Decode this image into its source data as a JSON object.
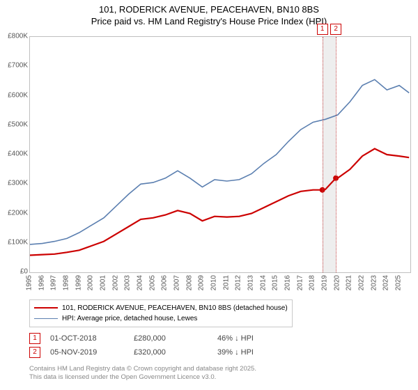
{
  "title_line1": "101, RODERICK AVENUE, PEACEHAVEN, BN10 8BS",
  "title_line2": "Price paid vs. HM Land Registry's House Price Index (HPI)",
  "chart": {
    "type": "line",
    "background_color": "#ffffff",
    "border_color": "#bfbfbf",
    "ylim": [
      0,
      800000
    ],
    "ytick_step": 100000,
    "ylabels": [
      "£0",
      "£100K",
      "£200K",
      "£300K",
      "£400K",
      "£500K",
      "£600K",
      "£700K",
      "£800K"
    ],
    "xlim": [
      1995,
      2025.9
    ],
    "xlabels": [
      "1995",
      "1996",
      "1997",
      "1998",
      "1999",
      "2000",
      "2001",
      "2002",
      "2003",
      "2004",
      "2005",
      "2006",
      "2007",
      "2008",
      "2009",
      "2010",
      "2011",
      "2012",
      "2013",
      "2014",
      "2015",
      "2016",
      "2017",
      "2018",
      "2019",
      "2020",
      "2021",
      "2022",
      "2023",
      "2024",
      "2025"
    ],
    "series": [
      {
        "name": "price_paid",
        "color": "#cc0000",
        "width": 2.2,
        "points": [
          [
            1995,
            58000
          ],
          [
            1996,
            60000
          ],
          [
            1997,
            62000
          ],
          [
            1998,
            68000
          ],
          [
            1999,
            75000
          ],
          [
            2000,
            90000
          ],
          [
            2001,
            105000
          ],
          [
            2002,
            130000
          ],
          [
            2003,
            155000
          ],
          [
            2004,
            180000
          ],
          [
            2005,
            185000
          ],
          [
            2006,
            195000
          ],
          [
            2007,
            210000
          ],
          [
            2008,
            200000
          ],
          [
            2009,
            175000
          ],
          [
            2010,
            190000
          ],
          [
            2011,
            188000
          ],
          [
            2012,
            190000
          ],
          [
            2013,
            200000
          ],
          [
            2014,
            220000
          ],
          [
            2015,
            240000
          ],
          [
            2016,
            260000
          ],
          [
            2017,
            275000
          ],
          [
            2018,
            280000
          ],
          [
            2018.75,
            280000
          ],
          [
            2019,
            282000
          ],
          [
            2019.85,
            320000
          ],
          [
            2020,
            320000
          ],
          [
            2021,
            350000
          ],
          [
            2022,
            395000
          ],
          [
            2023,
            420000
          ],
          [
            2024,
            400000
          ],
          [
            2025,
            395000
          ],
          [
            2025.8,
            390000
          ]
        ]
      },
      {
        "name": "hpi",
        "color": "#5b7fb0",
        "width": 1.6,
        "points": [
          [
            1995,
            95000
          ],
          [
            1996,
            98000
          ],
          [
            1997,
            105000
          ],
          [
            1998,
            115000
          ],
          [
            1999,
            135000
          ],
          [
            2000,
            160000
          ],
          [
            2001,
            185000
          ],
          [
            2002,
            225000
          ],
          [
            2003,
            265000
          ],
          [
            2004,
            300000
          ],
          [
            2005,
            305000
          ],
          [
            2006,
            320000
          ],
          [
            2007,
            345000
          ],
          [
            2008,
            320000
          ],
          [
            2009,
            290000
          ],
          [
            2010,
            315000
          ],
          [
            2011,
            310000
          ],
          [
            2012,
            315000
          ],
          [
            2013,
            335000
          ],
          [
            2014,
            370000
          ],
          [
            2015,
            400000
          ],
          [
            2016,
            445000
          ],
          [
            2017,
            485000
          ],
          [
            2018,
            510000
          ],
          [
            2019,
            520000
          ],
          [
            2020,
            535000
          ],
          [
            2021,
            580000
          ],
          [
            2022,
            635000
          ],
          [
            2023,
            655000
          ],
          [
            2024,
            620000
          ],
          [
            2025,
            635000
          ],
          [
            2025.8,
            610000
          ]
        ]
      }
    ],
    "markers": [
      {
        "n": "1",
        "x": 2018.75,
        "y": 280000
      },
      {
        "n": "2",
        "x": 2019.85,
        "y": 320000
      }
    ],
    "band_color": "#eeeeee"
  },
  "legend": {
    "s1_color": "#cc0000",
    "s1_label": "101, RODERICK AVENUE, PEACEHAVEN, BN10 8BS (detached house)",
    "s2_color": "#5b7fb0",
    "s2_label": "HPI: Average price, detached house, Lewes"
  },
  "sales": [
    {
      "n": "1",
      "date": "01-OCT-2018",
      "price": "£280,000",
      "diff": "46% ↓ HPI"
    },
    {
      "n": "2",
      "date": "05-NOV-2019",
      "price": "£320,000",
      "diff": "39% ↓ HPI"
    }
  ],
  "footer_line1": "Contains HM Land Registry data © Crown copyright and database right 2025.",
  "footer_line2": "This data is licensed under the Open Government Licence v3.0."
}
